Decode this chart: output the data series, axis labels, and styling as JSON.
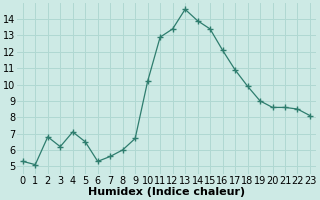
{
  "x": [
    0,
    1,
    2,
    3,
    4,
    5,
    6,
    7,
    8,
    9,
    10,
    11,
    12,
    13,
    14,
    15,
    16,
    17,
    18,
    19,
    20,
    21,
    22,
    23
  ],
  "y": [
    5.3,
    5.1,
    6.8,
    6.2,
    7.1,
    6.5,
    5.3,
    5.6,
    6.0,
    6.7,
    10.2,
    12.9,
    13.4,
    14.6,
    13.9,
    13.4,
    12.1,
    10.9,
    9.9,
    9.0,
    8.6,
    8.6,
    8.5,
    8.1
  ],
  "line_color": "#2e7d6e",
  "marker": "+",
  "marker_size": 4,
  "marker_color": "#2e7d6e",
  "bg_color": "#cdeae5",
  "grid_color": "#b0d8d2",
  "xlabel": "Humidex (Indice chaleur)",
  "xlabel_fontsize": 8,
  "tick_fontsize": 7,
  "xlim": [
    -0.5,
    23.5
  ],
  "ylim": [
    4.5,
    15.0
  ],
  "yticks": [
    5,
    6,
    7,
    8,
    9,
    10,
    11,
    12,
    13,
    14
  ],
  "xticks": [
    0,
    1,
    2,
    3,
    4,
    5,
    6,
    7,
    8,
    9,
    10,
    11,
    12,
    13,
    14,
    15,
    16,
    17,
    18,
    19,
    20,
    21,
    22,
    23
  ]
}
